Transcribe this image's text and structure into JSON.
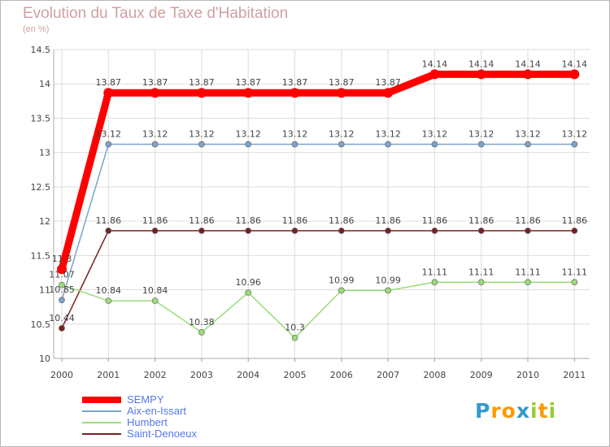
{
  "chart_data": {
    "type": "line",
    "title": "Evolution du Taux de Taxe d'Habitation",
    "subtitle": "(en %)",
    "x": [
      "2000",
      "2001",
      "2002",
      "2003",
      "2004",
      "2005",
      "2006",
      "2007",
      "2008",
      "2009",
      "2010",
      "2011"
    ],
    "ylim": [
      10,
      14.5
    ],
    "yticks": [
      "10",
      "10.5",
      "11",
      "11.5",
      "12",
      "12.5",
      "13",
      "13.5",
      "14",
      "14.5"
    ],
    "grid": true,
    "legend_position": "bottom-left",
    "series": [
      {
        "name": "SEMPY",
        "color": "#ff0000",
        "values": [
          11.3,
          13.87,
          13.87,
          13.87,
          13.87,
          13.87,
          13.87,
          13.87,
          14.14,
          14.14,
          14.14,
          14.14
        ],
        "labels": [
          "11.3",
          "13.87",
          "13.87",
          "13.87",
          "13.87",
          "13.87",
          "13.87",
          "13.87",
          "14.14",
          "14.14",
          "14.14",
          "14.14"
        ]
      },
      {
        "name": "Aix-en-Issart",
        "color": "#7aa4cc",
        "values": [
          10.85,
          13.12,
          13.12,
          13.12,
          13.12,
          13.12,
          13.12,
          13.12,
          13.12,
          13.12,
          13.12,
          13.12
        ],
        "labels": [
          "10.85",
          "13.12",
          "13.12",
          "13.12",
          "13.12",
          "13.12",
          "13.12",
          "13.12",
          "13.12",
          "13.12",
          "13.12",
          "13.12"
        ]
      },
      {
        "name": "Humbert",
        "color": "#99dd77",
        "values": [
          11.07,
          10.84,
          10.84,
          10.38,
          10.96,
          10.3,
          10.99,
          10.99,
          11.11,
          11.11,
          11.11,
          11.11
        ],
        "labels": [
          "11.07",
          "10.84",
          "10.84",
          "10.38",
          "10.96",
          "10.3",
          "10.99",
          "10.99",
          "11.11",
          "11.11",
          "11.11",
          "11.11"
        ]
      },
      {
        "name": "Saint-Denoeux",
        "color": "#772222",
        "values": [
          10.44,
          11.86,
          11.86,
          11.86,
          11.86,
          11.86,
          11.86,
          11.86,
          11.86,
          11.86,
          11.86,
          11.86
        ],
        "labels": [
          "10.44",
          "11.86",
          "11.86",
          "11.86",
          "11.86",
          "11.86",
          "11.86",
          "11.86",
          "11.86",
          "11.86",
          "11.86",
          "11.86"
        ]
      }
    ]
  },
  "logo": {
    "letters": [
      "P",
      "r",
      "o",
      "x",
      "i",
      "t",
      "i"
    ],
    "colors": [
      "#3399cc",
      "#ff9900",
      "#ff9900",
      "#3399cc",
      "#99cc33",
      "#ff9900",
      "#99cc33"
    ]
  }
}
